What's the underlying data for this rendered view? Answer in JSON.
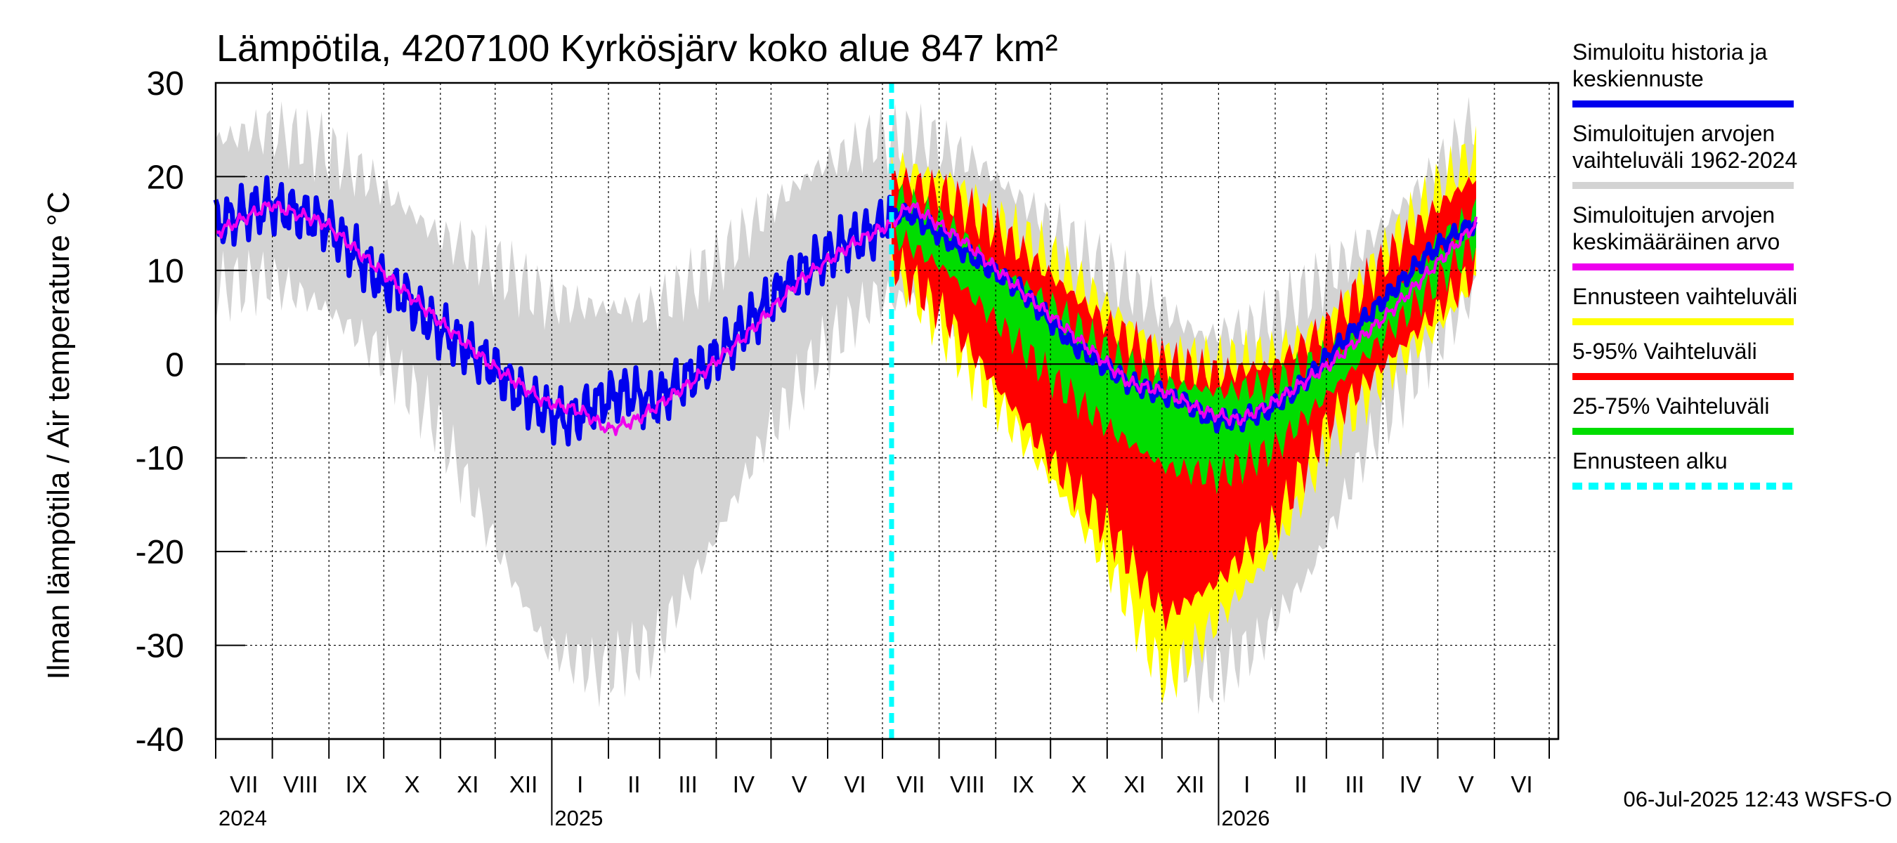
{
  "chart_data": {
    "type": "area",
    "title": "Lämpötila, 4207100 Kyrkösjärv koko alue 847 km²",
    "ylabel": "Ilman lämpötila / Air temperature    °C",
    "ylim": [
      -40,
      30
    ],
    "yticks": [
      30,
      20,
      10,
      0,
      -10,
      -20,
      -30,
      -40
    ],
    "ytick_labels": [
      "30",
      "20",
      "10",
      "0",
      "-10",
      "-20",
      "-30",
      "-40"
    ],
    "x_start": "2024-07-01",
    "x_end": "2026-07-06",
    "month_labels": [
      "VII",
      "VIII",
      "IX",
      "X",
      "XI",
      "XII",
      "I",
      "II",
      "III",
      "IV",
      "V",
      "VI",
      "VII",
      "VIII",
      "IX",
      "X",
      "XI",
      "XII",
      "I",
      "II",
      "III",
      "IV",
      "V",
      "VI"
    ],
    "year_labels": [
      {
        "label": "2024",
        "date": "2024-07-01"
      },
      {
        "label": "2025",
        "date": "2025-01-01"
      },
      {
        "label": "2026",
        "date": "2026-01-01"
      }
    ],
    "forecast_start": "2025-07-06",
    "grid": true,
    "legend_position": "right",
    "series": [
      {
        "name": "Simuloitu historia ja keskiennuste",
        "color": "#0000ee",
        "kind": "line",
        "values": [
          [
            0,
            15
          ],
          [
            15,
            16
          ],
          [
            30,
            17
          ],
          [
            45,
            16
          ],
          [
            60,
            15
          ],
          [
            75,
            12
          ],
          [
            90,
            9
          ],
          [
            105,
            7
          ],
          [
            120,
            4
          ],
          [
            135,
            2
          ],
          [
            150,
            0
          ],
          [
            165,
            -3
          ],
          [
            180,
            -5
          ],
          [
            195,
            -6
          ],
          [
            210,
            -4
          ],
          [
            225,
            -3
          ],
          [
            240,
            -4
          ],
          [
            255,
            -2
          ],
          [
            270,
            0
          ],
          [
            285,
            3
          ],
          [
            300,
            6
          ],
          [
            315,
            9
          ],
          [
            330,
            11
          ],
          [
            345,
            13
          ],
          [
            360,
            14
          ],
          [
            370,
            16
          ],
          [
            380,
            16
          ],
          [
            395,
            14
          ],
          [
            410,
            12
          ],
          [
            425,
            10
          ],
          [
            440,
            8
          ],
          [
            455,
            5
          ],
          [
            470,
            2
          ],
          [
            485,
            0
          ],
          [
            500,
            -2
          ],
          [
            515,
            -3
          ],
          [
            530,
            -4
          ],
          [
            545,
            -6
          ],
          [
            560,
            -6
          ],
          [
            575,
            -5
          ],
          [
            590,
            -3
          ],
          [
            605,
            0
          ],
          [
            620,
            3
          ],
          [
            635,
            6
          ],
          [
            650,
            9
          ],
          [
            665,
            12
          ],
          [
            680,
            14
          ],
          [
            690,
            15
          ]
        ]
      },
      {
        "name": "Simuloitujen arvojen vaihteluväli 1962-2024",
        "color": "#d3d3d3",
        "kind": "band",
        "upper": [
          [
            0,
            24
          ],
          [
            30,
            25
          ],
          [
            60,
            23
          ],
          [
            90,
            19
          ],
          [
            120,
            14
          ],
          [
            150,
            11
          ],
          [
            180,
            7
          ],
          [
            210,
            6
          ],
          [
            240,
            6
          ],
          [
            270,
            10
          ],
          [
            300,
            16
          ],
          [
            330,
            21
          ],
          [
            360,
            24
          ],
          [
            390,
            24
          ],
          [
            420,
            21
          ],
          [
            450,
            16
          ],
          [
            480,
            11
          ],
          [
            510,
            7
          ],
          [
            540,
            3
          ],
          [
            570,
            4
          ],
          [
            600,
            8
          ],
          [
            630,
            13
          ],
          [
            660,
            19
          ],
          [
            690,
            26
          ]
        ],
        "lower": [
          [
            0,
            8
          ],
          [
            30,
            9
          ],
          [
            60,
            6
          ],
          [
            90,
            1
          ],
          [
            120,
            -6
          ],
          [
            150,
            -18
          ],
          [
            180,
            -30
          ],
          [
            210,
            -33
          ],
          [
            240,
            -30
          ],
          [
            270,
            -20
          ],
          [
            300,
            -8
          ],
          [
            330,
            1
          ],
          [
            360,
            7
          ],
          [
            390,
            7
          ],
          [
            420,
            2
          ],
          [
            450,
            -5
          ],
          [
            480,
            -15
          ],
          [
            510,
            -26
          ],
          [
            540,
            -34
          ],
          [
            570,
            -30
          ],
          [
            600,
            -22
          ],
          [
            630,
            -9
          ],
          [
            660,
            0
          ],
          [
            690,
            8
          ]
        ]
      },
      {
        "name": "Simuloitujen arvojen keskimääräinen arvo",
        "color": "#ee00ee",
        "kind": "line",
        "values": [
          [
            0,
            14
          ],
          [
            30,
            17
          ],
          [
            60,
            15
          ],
          [
            90,
            10
          ],
          [
            120,
            5
          ],
          [
            150,
            0
          ],
          [
            180,
            -4
          ],
          [
            200,
            -5
          ],
          [
            215,
            -7
          ],
          [
            230,
            -6
          ],
          [
            260,
            -2
          ],
          [
            290,
            3
          ],
          [
            320,
            9
          ],
          [
            350,
            13
          ],
          [
            370,
            15
          ],
          [
            380,
            17
          ],
          [
            410,
            13
          ],
          [
            440,
            8
          ],
          [
            470,
            3
          ],
          [
            500,
            -2
          ],
          [
            520,
            -3
          ],
          [
            540,
            -5
          ],
          [
            560,
            -6
          ],
          [
            580,
            -4
          ],
          [
            610,
            0
          ],
          [
            640,
            5
          ],
          [
            670,
            11
          ],
          [
            690,
            15
          ]
        ]
      },
      {
        "name": "Ennusteen vaihteluväli",
        "color": "#ffff00",
        "kind": "band",
        "upper": [
          [
            370,
            21
          ],
          [
            400,
            20
          ],
          [
            430,
            15
          ],
          [
            460,
            11
          ],
          [
            490,
            6
          ],
          [
            520,
            1
          ],
          [
            550,
            0
          ],
          [
            580,
            1
          ],
          [
            610,
            5
          ],
          [
            640,
            12
          ],
          [
            670,
            19
          ],
          [
            690,
            23
          ]
        ],
        "lower": [
          [
            370,
            10
          ],
          [
            400,
            3
          ],
          [
            430,
            -5
          ],
          [
            460,
            -13
          ],
          [
            490,
            -22
          ],
          [
            520,
            -34
          ],
          [
            550,
            -27
          ],
          [
            580,
            -20
          ],
          [
            610,
            -8
          ],
          [
            640,
            -1
          ],
          [
            670,
            4
          ],
          [
            690,
            9
          ]
        ]
      },
      {
        "name": "5-95% Vaihteluväli",
        "color": "#ff0000",
        "kind": "band",
        "upper": [
          [
            370,
            20
          ],
          [
            400,
            18
          ],
          [
            430,
            14
          ],
          [
            460,
            9
          ],
          [
            490,
            4
          ],
          [
            520,
            0
          ],
          [
            550,
            -1
          ],
          [
            580,
            0
          ],
          [
            610,
            4
          ],
          [
            640,
            11
          ],
          [
            670,
            17
          ],
          [
            690,
            20
          ]
        ],
        "lower": [
          [
            370,
            11
          ],
          [
            400,
            5
          ],
          [
            430,
            -3
          ],
          [
            460,
            -11
          ],
          [
            490,
            -18
          ],
          [
            520,
            -27
          ],
          [
            550,
            -23
          ],
          [
            580,
            -17
          ],
          [
            610,
            -6
          ],
          [
            640,
            0
          ],
          [
            670,
            6
          ],
          [
            690,
            10
          ]
        ]
      },
      {
        "name": "25-75% Vaihteluväli",
        "color": "#00dd00",
        "kind": "band",
        "upper": [
          [
            370,
            18
          ],
          [
            400,
            15
          ],
          [
            430,
            10
          ],
          [
            460,
            6
          ],
          [
            490,
            1
          ],
          [
            520,
            -2
          ],
          [
            550,
            -3
          ],
          [
            580,
            -2
          ],
          [
            610,
            1
          ],
          [
            640,
            7
          ],
          [
            670,
            13
          ],
          [
            690,
            16
          ]
        ],
        "lower": [
          [
            370,
            14
          ],
          [
            400,
            10
          ],
          [
            430,
            4
          ],
          [
            460,
            -2
          ],
          [
            490,
            -7
          ],
          [
            520,
            -11
          ],
          [
            550,
            -12
          ],
          [
            580,
            -9
          ],
          [
            610,
            -3
          ],
          [
            640,
            3
          ],
          [
            670,
            9
          ],
          [
            690,
            13
          ]
        ]
      },
      {
        "name": "Ennusteen alku",
        "color": "#00ffff",
        "kind": "vline"
      }
    ]
  },
  "legend": [
    {
      "lines": [
        "Simuloitu historia ja",
        "keskiennuste"
      ],
      "color": "#0000ee",
      "style": "solid"
    },
    {
      "lines": [
        "Simuloitujen arvojen",
        "vaihteluväli 1962-2024"
      ],
      "color": "#d3d3d3",
      "style": "solid"
    },
    {
      "lines": [
        "Simuloitujen arvojen",
        "keskimääräinen arvo"
      ],
      "color": "#ee00ee",
      "style": "solid"
    },
    {
      "lines": [
        "Ennusteen vaihteluväli"
      ],
      "color": "#ffff00",
      "style": "solid"
    },
    {
      "lines": [
        "5-95% Vaihteluväli"
      ],
      "color": "#ff0000",
      "style": "solid"
    },
    {
      "lines": [
        "25-75% Vaihteluväli"
      ],
      "color": "#00dd00",
      "style": "solid"
    },
    {
      "lines": [
        "Ennusteen alku"
      ],
      "color": "#00ffff",
      "style": "dashed"
    }
  ],
  "footer": {
    "timestamp": "06-Jul-2025 12:43 WSFS-O"
  }
}
